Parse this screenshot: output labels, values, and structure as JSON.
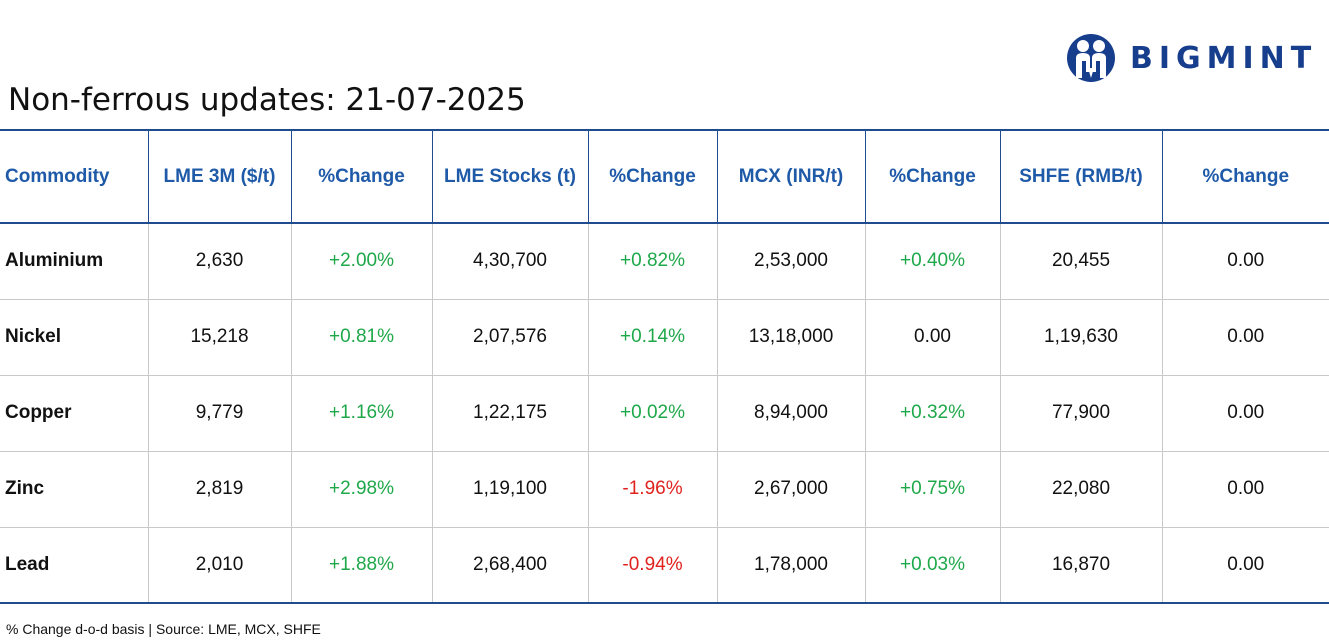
{
  "brand": {
    "name": "BIGMINT",
    "color": "#173e8c",
    "icon": "people-logo-icon"
  },
  "title": "Non-ferrous updates: 21-07-2025",
  "table": {
    "headers": [
      "Commodity",
      "LME 3M ($/t)",
      "%Change",
      "LME Stocks (t)",
      "%Change",
      "MCX (INR/t)",
      "%Change",
      "SHFE (RMB/t)",
      "%Change"
    ],
    "rows": [
      [
        "Aluminium",
        "2,630",
        "+2.00%",
        "4,30,700",
        "+0.82%",
        "2,53,000",
        "+0.40%",
        "20,455",
        "0.00"
      ],
      [
        "Nickel",
        "15,218",
        "+0.81%",
        "2,07,576",
        "+0.14%",
        "13,18,000",
        "0.00",
        "1,19,630",
        "0.00"
      ],
      [
        "Copper",
        "9,779",
        "+1.16%",
        "1,22,175",
        "+0.02%",
        "8,94,000",
        "+0.32%",
        "77,900",
        "0.00"
      ],
      [
        "Zinc",
        "2,819",
        "+2.98%",
        "1,19,100",
        "-1.96%",
        "2,67,000",
        "+0.75%",
        "22,080",
        "0.00"
      ],
      [
        "Lead",
        "2,010",
        "+1.88%",
        "2,68,400",
        "-0.94%",
        "1,78,000",
        "+0.03%",
        "16,870",
        "0.00"
      ]
    ]
  },
  "colors": {
    "positive": "#1fa84a",
    "negative": "#e0221e",
    "header_text": "#1f5aa8",
    "rule": "#1f4c8f"
  },
  "footnote": "% Change d-o-d basis | Source: LME, MCX, SHFE"
}
